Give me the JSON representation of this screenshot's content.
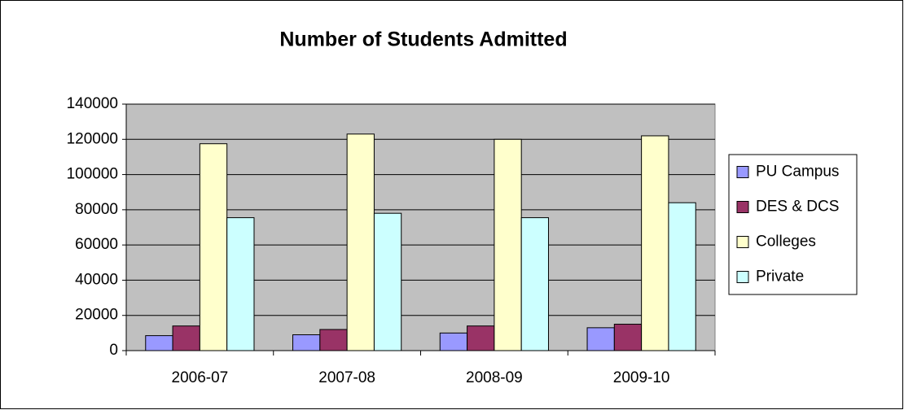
{
  "chart_data": {
    "type": "bar",
    "title": "Number of Students Admitted",
    "categories": [
      "2006-07",
      "2007-08",
      "2008-09",
      "2009-10"
    ],
    "series": [
      {
        "name": "PU Campus",
        "color": "#9999ff",
        "values": [
          8500,
          9000,
          10000,
          13000
        ]
      },
      {
        "name": "DES & DCS",
        "color": "#993366",
        "values": [
          14000,
          12000,
          14000,
          15000
        ]
      },
      {
        "name": "Colleges",
        "color": "#ffffcc",
        "values": [
          117500,
          123000,
          120000,
          122000
        ]
      },
      {
        "name": "Private",
        "color": "#ccffff",
        "values": [
          75500,
          78000,
          75500,
          84000
        ]
      }
    ],
    "ylim": [
      0,
      140000
    ],
    "yticks": [
      0,
      20000,
      40000,
      60000,
      80000,
      100000,
      120000,
      140000
    ],
    "grid": true,
    "legend": "right",
    "plot_background": "#c0c0c0"
  }
}
